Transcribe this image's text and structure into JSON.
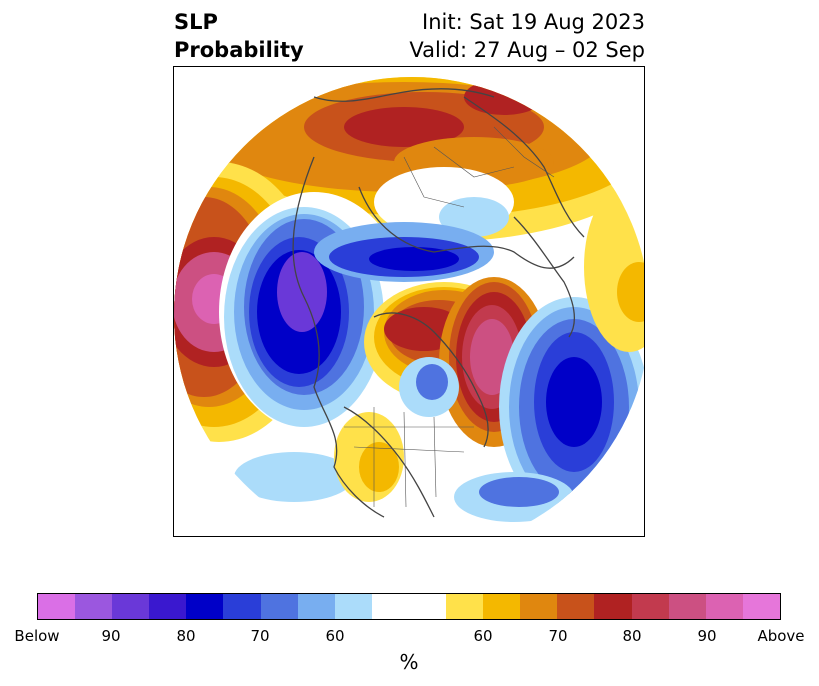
{
  "title": {
    "left_line1": "SLP",
    "left_line2": "Probability",
    "right_line1": "Init: Sat 19 Aug 2023",
    "right_line2": "Valid: 27 Aug – 02 Sep"
  },
  "colorbar": {
    "colors": [
      "#da6fe6",
      "#9b57df",
      "#6a38d8",
      "#3a18cf",
      "#0000c8",
      "#2a3ed8",
      "#4f73e0",
      "#78aef0",
      "#abdcfa",
      "#ffffff",
      "#ffffff",
      "#ffe14a",
      "#f4b800",
      "#e0870f",
      "#c8521b",
      "#b02222",
      "#c23a4e",
      "#cc5082",
      "#dc62b2",
      "#e676da"
    ],
    "tick_labels": [
      "Below",
      "90",
      "80",
      "70",
      "60",
      "60",
      "70",
      "80",
      "90",
      "Above"
    ],
    "unit": "%"
  },
  "legend_colors": {
    "below_strong": "#6a38d8",
    "below_mid": "#0000c8",
    "below_weak": "#abdcfa",
    "above_weak": "#ffe14a",
    "above_mid": "#e0870f",
    "above_strong": "#b02222",
    "above_extreme": "#dc62b2"
  }
}
